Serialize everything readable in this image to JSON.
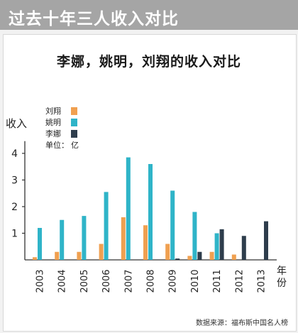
{
  "banner": {
    "title": "过去十年三人收入对比"
  },
  "chart_data": {
    "type": "bar",
    "title": "李娜，姚明，刘翔的收入对比",
    "ylabel": "收入",
    "xlabel": "年份",
    "unit_label": "单位：",
    "unit_value": "亿",
    "ylim": [
      0,
      4.3
    ],
    "yticks": [
      1,
      2,
      3,
      4
    ],
    "categories": [
      "2003",
      "2004",
      "2005",
      "2006",
      "2007",
      "2008",
      "2009",
      "2010",
      "2011",
      "2012",
      "2013"
    ],
    "series": [
      {
        "name": "刘翔",
        "color": "#f0a050",
        "values": [
          0.1,
          0.3,
          0.3,
          0.6,
          1.6,
          1.3,
          0.6,
          0.15,
          0.3,
          0.2,
          0
        ]
      },
      {
        "name": "姚明",
        "color": "#2fb4c8",
        "values": [
          1.2,
          1.5,
          1.65,
          2.55,
          3.85,
          3.6,
          2.6,
          1.8,
          1.0,
          0,
          0
        ]
      },
      {
        "name": "李娜",
        "color": "#2e3d4c",
        "values": [
          0,
          0,
          0,
          0,
          0,
          0,
          0.05,
          0.3,
          1.15,
          0.9,
          1.45
        ]
      }
    ],
    "grid": false,
    "legend_position": "top-left"
  },
  "footer": {
    "source": "数据来源：福布斯中国名人榜"
  }
}
